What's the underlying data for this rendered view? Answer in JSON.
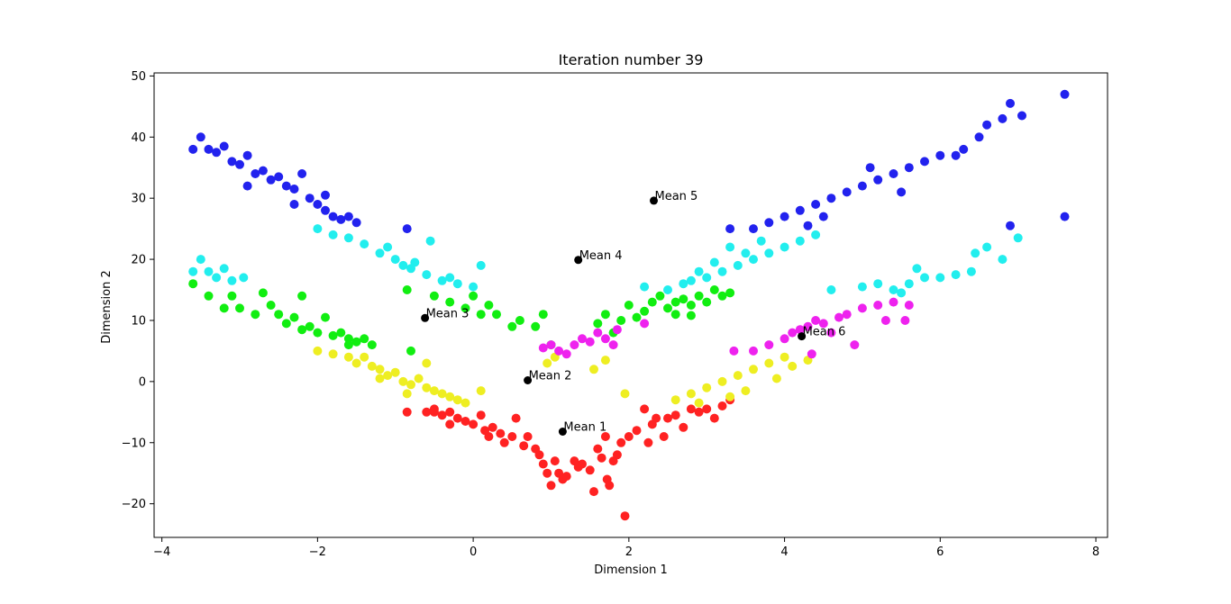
{
  "chart_data": {
    "type": "scatter",
    "title": "Iteration number 39",
    "xlabel": "Dimension 1",
    "ylabel": "Dimension 2",
    "xlim": [
      -4.1,
      8.15
    ],
    "ylim": [
      -25.5,
      50.5
    ],
    "xticks": [
      -4,
      -2,
      0,
      2,
      4,
      6,
      8
    ],
    "yticks": [
      -20,
      -10,
      0,
      10,
      20,
      30,
      40,
      50
    ],
    "grid": false,
    "series": [
      {
        "color": "#ff2222",
        "points": [
          [
            -0.85,
            -5
          ],
          [
            -0.6,
            -5
          ],
          [
            -0.5,
            -4.5
          ],
          [
            -0.4,
            -5.5
          ],
          [
            -0.3,
            -5
          ],
          [
            -0.2,
            -6
          ],
          [
            -0.1,
            -6.5
          ],
          [
            0,
            -7
          ],
          [
            0.1,
            -5.5
          ],
          [
            0.15,
            -8
          ],
          [
            0.25,
            -7.5
          ],
          [
            0.35,
            -8.5
          ],
          [
            0.5,
            -9
          ],
          [
            0.55,
            -6
          ],
          [
            0.65,
            -10.5
          ],
          [
            0.7,
            -9
          ],
          [
            0.8,
            -11
          ],
          [
            0.85,
            -12
          ],
          [
            0.9,
            -13.5
          ],
          [
            0.95,
            -15
          ],
          [
            1,
            -17
          ],
          [
            1.05,
            -13
          ],
          [
            1.1,
            -15
          ],
          [
            1.15,
            -16
          ],
          [
            1.2,
            -15.5
          ],
          [
            1.3,
            -13
          ],
          [
            1.35,
            -14
          ],
          [
            1.4,
            -13.5
          ],
          [
            1.5,
            -14.5
          ],
          [
            1.55,
            -18
          ],
          [
            1.6,
            -11
          ],
          [
            1.65,
            -12.5
          ],
          [
            1.7,
            -9
          ],
          [
            1.72,
            -16
          ],
          [
            1.75,
            -17
          ],
          [
            1.8,
            -13
          ],
          [
            1.85,
            -12
          ],
          [
            1.9,
            -10
          ],
          [
            1.95,
            -22
          ],
          [
            2,
            -9
          ],
          [
            2.1,
            -8
          ],
          [
            2.2,
            -4.5
          ],
          [
            2.25,
            -10
          ],
          [
            2.3,
            -7
          ],
          [
            2.35,
            -6
          ],
          [
            2.45,
            -9
          ],
          [
            2.5,
            -6
          ],
          [
            2.6,
            -5.5
          ],
          [
            2.7,
            -7.5
          ],
          [
            2.8,
            -4.5
          ],
          [
            2.9,
            -5
          ],
          [
            3,
            -4.5
          ],
          [
            3.1,
            -6
          ],
          [
            3.2,
            -4
          ],
          [
            3.3,
            -3
          ],
          [
            -0.3,
            -7
          ],
          [
            0.4,
            -10
          ],
          [
            -0.5,
            -5
          ],
          [
            0.2,
            -9
          ]
        ]
      },
      {
        "color": "#eeee22",
        "points": [
          [
            -2,
            5
          ],
          [
            -1.8,
            4.5
          ],
          [
            -1.6,
            4
          ],
          [
            -1.5,
            3
          ],
          [
            -1.4,
            4
          ],
          [
            -1.3,
            2.5
          ],
          [
            -1.2,
            2
          ],
          [
            -1.1,
            1
          ],
          [
            -1,
            1.5
          ],
          [
            -0.9,
            0
          ],
          [
            -0.8,
            -0.5
          ],
          [
            -0.7,
            0.5
          ],
          [
            -0.6,
            -1
          ],
          [
            -0.5,
            -1.5
          ],
          [
            -0.4,
            -2
          ],
          [
            -0.3,
            -2.5
          ],
          [
            -0.2,
            -3
          ],
          [
            -0.1,
            -3.5
          ],
          [
            0.1,
            -1.5
          ],
          [
            -0.6,
            3
          ],
          [
            -0.85,
            -2
          ],
          [
            -1.2,
            0.5
          ],
          [
            0.95,
            3
          ],
          [
            1.05,
            4
          ],
          [
            1.55,
            2
          ],
          [
            1.7,
            3.5
          ],
          [
            1.95,
            -2
          ],
          [
            2.6,
            -3
          ],
          [
            2.8,
            -2
          ],
          [
            3,
            -1
          ],
          [
            3.2,
            0
          ],
          [
            3.4,
            1
          ],
          [
            3.6,
            2
          ],
          [
            3.8,
            3
          ],
          [
            4,
            4
          ],
          [
            3.5,
            -1.5
          ],
          [
            3.3,
            -2.5
          ],
          [
            4.1,
            2.5
          ],
          [
            3.9,
            0.5
          ],
          [
            4.3,
            3.5
          ],
          [
            2.9,
            -3.5
          ]
        ]
      },
      {
        "color": "#11ee11",
        "points": [
          [
            -3.6,
            16
          ],
          [
            -3.4,
            14
          ],
          [
            -3.2,
            12
          ],
          [
            -3.1,
            14
          ],
          [
            -3,
            12
          ],
          [
            -2.8,
            11
          ],
          [
            -2.7,
            14.5
          ],
          [
            -2.6,
            12.5
          ],
          [
            -2.5,
            11
          ],
          [
            -2.4,
            9.5
          ],
          [
            -2.3,
            10.5
          ],
          [
            -2.2,
            8.5
          ],
          [
            -2.1,
            9
          ],
          [
            -2,
            8
          ],
          [
            -1.9,
            10.5
          ],
          [
            -1.8,
            7.5
          ],
          [
            -1.7,
            8
          ],
          [
            -1.6,
            7
          ],
          [
            -1.5,
            6.5
          ],
          [
            -1.4,
            7
          ],
          [
            -1.3,
            6
          ],
          [
            -2.2,
            14
          ],
          [
            -0.85,
            15
          ],
          [
            -0.5,
            14
          ],
          [
            -0.3,
            13
          ],
          [
            -0.1,
            12
          ],
          [
            0,
            14
          ],
          [
            0.1,
            11
          ],
          [
            0.2,
            12.5
          ],
          [
            0.3,
            11
          ],
          [
            0.5,
            9
          ],
          [
            0.6,
            10
          ],
          [
            0.8,
            9
          ],
          [
            0.9,
            11
          ],
          [
            1,
            6
          ],
          [
            -0.8,
            5
          ],
          [
            1.6,
            9.5
          ],
          [
            1.7,
            11
          ],
          [
            1.8,
            8
          ],
          [
            1.9,
            10
          ],
          [
            2,
            12.5
          ],
          [
            2.1,
            10.5
          ],
          [
            2.2,
            11.5
          ],
          [
            2.3,
            13
          ],
          [
            2.4,
            14
          ],
          [
            2.5,
            12
          ],
          [
            2.6,
            11
          ],
          [
            2.7,
            13.5
          ],
          [
            2.8,
            12.5
          ],
          [
            2.9,
            14
          ],
          [
            3,
            13
          ],
          [
            3.1,
            15
          ],
          [
            3.2,
            14
          ],
          [
            3.3,
            14.5
          ],
          [
            2.8,
            10.8
          ],
          [
            2.6,
            13
          ],
          [
            -1.6,
            6
          ]
        ]
      },
      {
        "color": "#22eeee",
        "points": [
          [
            -3.6,
            18
          ],
          [
            -3.5,
            20
          ],
          [
            -3.4,
            18
          ],
          [
            -3.3,
            17
          ],
          [
            -3.2,
            18.5
          ],
          [
            -3.1,
            16.5
          ],
          [
            -2.95,
            17
          ],
          [
            -2,
            25
          ],
          [
            -1.8,
            24
          ],
          [
            -1.6,
            23.5
          ],
          [
            -1.4,
            22.5
          ],
          [
            -1.2,
            21
          ],
          [
            -1,
            20
          ],
          [
            -0.9,
            19
          ],
          [
            -0.8,
            18.5
          ],
          [
            -0.6,
            17.5
          ],
          [
            -0.4,
            16.5
          ],
          [
            -0.2,
            16
          ],
          [
            0,
            15.5
          ],
          [
            0.1,
            19
          ],
          [
            -0.55,
            23
          ],
          [
            -0.75,
            19.5
          ],
          [
            -1.1,
            22
          ],
          [
            -0.3,
            17
          ],
          [
            2.2,
            15.5
          ],
          [
            2.5,
            15
          ],
          [
            2.7,
            16
          ],
          [
            2.8,
            16.5
          ],
          [
            3,
            17
          ],
          [
            3.2,
            18
          ],
          [
            3.4,
            19
          ],
          [
            3.6,
            20
          ],
          [
            3.8,
            21
          ],
          [
            4,
            22
          ],
          [
            4.2,
            23
          ],
          [
            4.4,
            24
          ],
          [
            3.5,
            21
          ],
          [
            3.7,
            23
          ],
          [
            2.9,
            18
          ],
          [
            3.1,
            19.5
          ],
          [
            3.3,
            22
          ],
          [
            4.6,
            15
          ],
          [
            5,
            15.5
          ],
          [
            5.2,
            16
          ],
          [
            5.4,
            15
          ],
          [
            5.6,
            16
          ],
          [
            5.8,
            17
          ],
          [
            6,
            17
          ],
          [
            6.2,
            17.5
          ],
          [
            6.4,
            18
          ],
          [
            6.45,
            21
          ],
          [
            6.6,
            22
          ],
          [
            6.8,
            20
          ],
          [
            7,
            23.5
          ],
          [
            5.5,
            14.5
          ],
          [
            5.7,
            18.5
          ]
        ]
      },
      {
        "color": "#2222ee",
        "points": [
          [
            -3.6,
            38
          ],
          [
            -3.5,
            40
          ],
          [
            -3.4,
            38
          ],
          [
            -3.3,
            37.5
          ],
          [
            -3.2,
            38.5
          ],
          [
            -3.1,
            36
          ],
          [
            -3,
            35.5
          ],
          [
            -2.9,
            37
          ],
          [
            -2.8,
            34
          ],
          [
            -2.7,
            34.5
          ],
          [
            -2.6,
            33
          ],
          [
            -2.5,
            33.5
          ],
          [
            -2.4,
            32
          ],
          [
            -2.3,
            31.5
          ],
          [
            -2.2,
            34
          ],
          [
            -2.1,
            30
          ],
          [
            -2,
            29
          ],
          [
            -1.9,
            28
          ],
          [
            -1.8,
            27
          ],
          [
            -1.7,
            26.5
          ],
          [
            -1.6,
            27
          ],
          [
            -1.5,
            26
          ],
          [
            -0.85,
            25
          ],
          [
            -2.9,
            32
          ],
          [
            -2.3,
            29
          ],
          [
            -1.9,
            30.5
          ],
          [
            3.3,
            25
          ],
          [
            3.6,
            25
          ],
          [
            3.8,
            26
          ],
          [
            4,
            27
          ],
          [
            4.2,
            28
          ],
          [
            4.4,
            29
          ],
          [
            4.6,
            30
          ],
          [
            4.8,
            31
          ],
          [
            5,
            32
          ],
          [
            5.2,
            33
          ],
          [
            5.4,
            34
          ],
          [
            5.6,
            35
          ],
          [
            5.8,
            36
          ],
          [
            6,
            37
          ],
          [
            6.2,
            37
          ],
          [
            6.3,
            38
          ],
          [
            6.5,
            40
          ],
          [
            6.6,
            42
          ],
          [
            6.8,
            43
          ],
          [
            6.9,
            45.5
          ],
          [
            7.05,
            43.5
          ],
          [
            7.6,
            47
          ],
          [
            7.6,
            27
          ],
          [
            6.9,
            25.5
          ],
          [
            4.5,
            27
          ],
          [
            5.1,
            35
          ],
          [
            5.5,
            31
          ],
          [
            4.3,
            25.5
          ]
        ]
      },
      {
        "color": "#ee22ee",
        "points": [
          [
            0.9,
            5.5
          ],
          [
            1,
            6
          ],
          [
            1.1,
            5
          ],
          [
            1.2,
            4.5
          ],
          [
            1.3,
            6
          ],
          [
            1.4,
            7
          ],
          [
            1.5,
            6.5
          ],
          [
            1.6,
            8
          ],
          [
            1.7,
            7
          ],
          [
            1.8,
            6
          ],
          [
            1.85,
            8.5
          ],
          [
            2.2,
            9.5
          ],
          [
            3.35,
            5
          ],
          [
            3.6,
            5
          ],
          [
            3.8,
            6
          ],
          [
            4,
            7
          ],
          [
            4.1,
            8
          ],
          [
            4.2,
            8.5
          ],
          [
            4.3,
            9
          ],
          [
            4.4,
            10
          ],
          [
            4.5,
            9.5
          ],
          [
            4.6,
            8
          ],
          [
            4.7,
            10.5
          ],
          [
            4.8,
            11
          ],
          [
            5,
            12
          ],
          [
            5.2,
            12.5
          ],
          [
            5.4,
            13
          ],
          [
            5.6,
            12.5
          ],
          [
            4.9,
            6
          ],
          [
            5.3,
            10
          ],
          [
            4.35,
            4.5
          ],
          [
            5.55,
            10
          ]
        ]
      }
    ],
    "means": [
      {
        "label": "Mean 1",
        "x": 1.15,
        "y": -8.2
      },
      {
        "label": "Mean 2",
        "x": 0.7,
        "y": 0.2
      },
      {
        "label": "Mean 3",
        "x": -0.62,
        "y": 10.4
      },
      {
        "label": "Mean 4",
        "x": 1.35,
        "y": 19.9
      },
      {
        "label": "Mean 5",
        "x": 2.32,
        "y": 29.6
      },
      {
        "label": "Mean 6",
        "x": 4.22,
        "y": 7.4
      }
    ]
  }
}
